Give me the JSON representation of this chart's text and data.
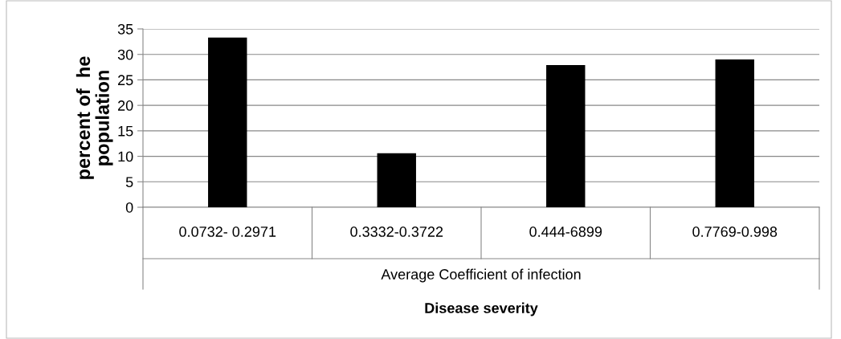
{
  "chart_data": {
    "type": "bar",
    "categories": [
      "0.0732- 0.2971",
      "0.3332-0.3722",
      "0.444-6899",
      "0.7769-0.998"
    ],
    "values": [
      33.3,
      10.6,
      27.9,
      29.0
    ],
    "color": "#000000",
    "ylabel": "percent of  he\npopulation",
    "xlabel": "Disease severity",
    "annotations": [
      "Average Coefficient of infection"
    ],
    "ylim": [
      0,
      35
    ],
    "yticks": [
      0,
      5,
      10,
      15,
      20,
      25,
      30,
      35
    ],
    "grid": "y"
  }
}
